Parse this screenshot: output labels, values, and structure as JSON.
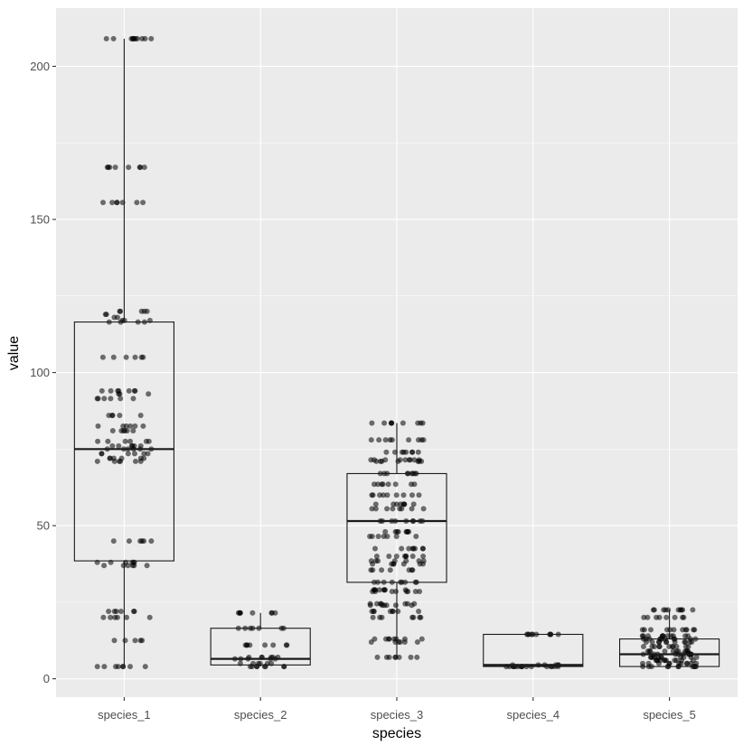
{
  "chart_data": {
    "type": "boxplot",
    "title": "",
    "xlabel": "species",
    "ylabel": "value",
    "ylim": [
      -6,
      219
    ],
    "yticks": [
      0,
      50,
      100,
      150,
      200
    ],
    "grid": true,
    "colors": {
      "panel": "#ebebeb",
      "grid_major": "#ffffff",
      "box_fill": "#ffffff",
      "box_stroke": "#1a1a1a",
      "points": "#000000"
    },
    "categories": [
      "species_1",
      "species_2",
      "species_3",
      "species_4",
      "species_5"
    ],
    "boxes": [
      {
        "category": "species_1",
        "min": 4,
        "q1": 38.5,
        "median": 75,
        "q3": 116.5,
        "max": 209
      },
      {
        "category": "species_2",
        "min": 4,
        "q1": 4.5,
        "median": 6.5,
        "q3": 16.5,
        "max": 21.5
      },
      {
        "category": "species_3",
        "min": 7,
        "q1": 31.5,
        "median": 51.5,
        "q3": 67,
        "max": 83.5
      },
      {
        "category": "species_4",
        "min": 4,
        "q1": 4,
        "median": 4.5,
        "q3": 14.5,
        "max": 14.5
      },
      {
        "category": "species_5",
        "min": 4,
        "q1": 4,
        "median": 8,
        "q3": 13,
        "max": 22.5
      }
    ],
    "points": [
      {
        "category": "species_1",
        "values": [
          209,
          209,
          209,
          209,
          209,
          209,
          209,
          209,
          209,
          209,
          209,
          167,
          167,
          167,
          167,
          167,
          167,
          167,
          167,
          155.5,
          155.5,
          155.5,
          155.5,
          155.5,
          155.5,
          155.5,
          120,
          120,
          120,
          120,
          120,
          119,
          119,
          118,
          118,
          117,
          117,
          117,
          116.5,
          116.5,
          116.5,
          116.5,
          105,
          105,
          105,
          105,
          105,
          105,
          94,
          94,
          94,
          94,
          94,
          94,
          94,
          93,
          93,
          93,
          91.5,
          91.5,
          91.5,
          91.5,
          91.5,
          91.5,
          86,
          86,
          86,
          86,
          86,
          82.5,
          82.5,
          82.5,
          82.5,
          82.5,
          82.5,
          81,
          81,
          81,
          81,
          81,
          81,
          77.5,
          77.5,
          77.5,
          77.5,
          77.5,
          77.5,
          76,
          76,
          76,
          76,
          76,
          76,
          75,
          75,
          75,
          75,
          75,
          75,
          73.5,
          73.5,
          73.5,
          73.5,
          73.5,
          73.5,
          72,
          72,
          72,
          72,
          72,
          72,
          71,
          71,
          71,
          71,
          71,
          71,
          45,
          45,
          45,
          45,
          45,
          45,
          38,
          38,
          38,
          38,
          38,
          38,
          37,
          37,
          37,
          37,
          37,
          37,
          22,
          22,
          22,
          22,
          22,
          22,
          20,
          20,
          20,
          20,
          20,
          20,
          12.5,
          12.5,
          12.5,
          12.5,
          12.5,
          4,
          4,
          4,
          4,
          4,
          4,
          4,
          4
        ]
      },
      {
        "category": "species_2",
        "values": [
          21.5,
          21.5,
          21.5,
          21.5,
          21.5,
          21.5,
          21.5,
          21.5,
          16.5,
          16.5,
          16.5,
          16.5,
          16.5,
          16.5,
          16.5,
          11,
          11,
          11,
          11,
          11,
          11,
          11,
          11,
          7,
          7,
          7,
          7,
          7,
          7,
          6.5,
          6.5,
          6.5,
          6.5,
          6.5,
          5,
          5,
          5,
          5,
          5,
          5,
          4,
          4,
          4,
          4,
          4,
          4,
          4,
          4
        ]
      },
      {
        "category": "species_3",
        "values": [
          83.5,
          83.5,
          83.5,
          83.5,
          83.5,
          83.5,
          83.5,
          83.5,
          83.5,
          78,
          78,
          78,
          78,
          78,
          78,
          78,
          78,
          78,
          74,
          74,
          74,
          74,
          74,
          74,
          74,
          74,
          71.5,
          71.5,
          71.5,
          71.5,
          71.5,
          71.5,
          71.5,
          71.5,
          71.5,
          71,
          71,
          71,
          71,
          71,
          71,
          71,
          67,
          67,
          67,
          67,
          67,
          67,
          67,
          67,
          67,
          63.5,
          63.5,
          63.5,
          63.5,
          63.5,
          63.5,
          63.5,
          63.5,
          60,
          60,
          60,
          60,
          60,
          60,
          60,
          60,
          60,
          57,
          57,
          57,
          57,
          57,
          57,
          57,
          57,
          55.5,
          55.5,
          55.5,
          55.5,
          55.5,
          55.5,
          55.5,
          55.5,
          51.5,
          51.5,
          51.5,
          51.5,
          51.5,
          51.5,
          51.5,
          51.5,
          51.5,
          48,
          48,
          48,
          48,
          48,
          48,
          48,
          48,
          46.5,
          46.5,
          46.5,
          46.5,
          46.5,
          46.5,
          46.5,
          42.5,
          42.5,
          42.5,
          42.5,
          42.5,
          42.5,
          42.5,
          42.5,
          40,
          40,
          40,
          40,
          40,
          40,
          40,
          40,
          38.5,
          38.5,
          38.5,
          38.5,
          38.5,
          38.5,
          38.5,
          37.5,
          37.5,
          37.5,
          37.5,
          37.5,
          37.5,
          37.5,
          35.5,
          35.5,
          35.5,
          35.5,
          35.5,
          35.5,
          35.5,
          31.5,
          31.5,
          31.5,
          31.5,
          31.5,
          31.5,
          31.5,
          31.5,
          31.5,
          29,
          29,
          29,
          29,
          29,
          29,
          29,
          29,
          28.5,
          28.5,
          28.5,
          28.5,
          28.5,
          28.5,
          28.5,
          28.5,
          24.5,
          24.5,
          24.5,
          24.5,
          24.5,
          24.5,
          24.5,
          24,
          24,
          24,
          24,
          24,
          24,
          22,
          22,
          22,
          22,
          22,
          22,
          22,
          22,
          20,
          20,
          20,
          20,
          20,
          20,
          20,
          13,
          13,
          13,
          13,
          13,
          13,
          13,
          13,
          12,
          12,
          12,
          12,
          12,
          12,
          7,
          7,
          7,
          7,
          7,
          7,
          7,
          7
        ]
      },
      {
        "category": "species_4",
        "values": [
          14.5,
          14.5,
          14.5,
          14.5,
          14.5,
          14.5,
          14.5,
          14.5,
          14.5,
          14.5,
          4.5,
          4.5,
          4.5,
          4.5,
          4.5,
          4.5,
          4,
          4,
          4,
          4,
          4,
          4,
          4,
          4,
          4,
          4,
          4,
          4,
          4,
          4,
          4,
          4
        ]
      },
      {
        "category": "species_5",
        "values": [
          22.5,
          22.5,
          22.5,
          22.5,
          22.5,
          22.5,
          22.5,
          22.5,
          22.5,
          22.5,
          20,
          20,
          20,
          20,
          20,
          20,
          20,
          20,
          16,
          16,
          16,
          16,
          16,
          16,
          16,
          16,
          16,
          16,
          16,
          14,
          14,
          14,
          14,
          14,
          14,
          14,
          14,
          14,
          14,
          14,
          13,
          13,
          13,
          13,
          13,
          13,
          13,
          13,
          13,
          13,
          13,
          12,
          12,
          12,
          12,
          12,
          12,
          12,
          12,
          12,
          12,
          12,
          10.5,
          10.5,
          10.5,
          10.5,
          10.5,
          10.5,
          10.5,
          10.5,
          10.5,
          10.5,
          10.5,
          9,
          9,
          9,
          9,
          9,
          9,
          9,
          9,
          9,
          9,
          9,
          8,
          8,
          8,
          8,
          8,
          8,
          8,
          8,
          8,
          8,
          8,
          7,
          7,
          7,
          7,
          7,
          7,
          7,
          7,
          7,
          7,
          7,
          6,
          6,
          6,
          6,
          6,
          6,
          6,
          6,
          6,
          6,
          6,
          5,
          5,
          5,
          5,
          5,
          5,
          5,
          5,
          5,
          5,
          5,
          4,
          4,
          4,
          4,
          4,
          4,
          4,
          4,
          4,
          4,
          4
        ]
      }
    ]
  }
}
